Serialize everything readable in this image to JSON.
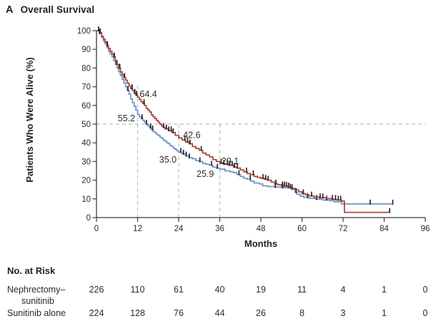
{
  "title": {
    "panel": "A",
    "text": "Overall Survival"
  },
  "colors": {
    "nephrectomy_sunitinib": "#a8423a",
    "sunitinib_alone": "#7093c5",
    "censor": "#1f1f1f",
    "dashed": "#bdbdbd",
    "axis": "#3b3b3b",
    "text": "#231f20"
  },
  "chart_data": {
    "type": "line",
    "subtype": "kaplan_meier_step",
    "title": "Overall Survival",
    "xlabel": "Months",
    "ylabel": "Patients Who Were Alive (%)",
    "xlim": [
      0,
      96
    ],
    "ylim": [
      0,
      100
    ],
    "x_ticks": [
      0,
      12,
      24,
      36,
      48,
      60,
      72,
      84,
      96
    ],
    "y_ticks": [
      0,
      10,
      20,
      30,
      40,
      50,
      60,
      70,
      80,
      90,
      100
    ],
    "grid": false,
    "reference_lines": {
      "horizontal_pct": 50,
      "vertical": [
        {
          "month": 12,
          "to_pct": 71
        },
        {
          "month": 24,
          "to_pct": 50
        },
        {
          "month": 36,
          "to_pct": 50
        }
      ]
    },
    "series": [
      {
        "name": "Sunitinib alone",
        "color_key": "sunitinib_alone",
        "steps": [
          [
            0,
            100
          ],
          [
            0.8,
            98.5
          ],
          [
            1.5,
            96.5
          ],
          [
            2,
            94.5
          ],
          [
            2.5,
            93
          ],
          [
            3,
            91
          ],
          [
            3.5,
            89
          ],
          [
            4,
            87.5
          ],
          [
            4.5,
            86
          ],
          [
            5,
            84
          ],
          [
            5.5,
            82
          ],
          [
            6,
            80
          ],
          [
            6.5,
            78
          ],
          [
            7,
            76
          ],
          [
            7.5,
            74
          ],
          [
            8,
            72
          ],
          [
            8.5,
            70
          ],
          [
            9,
            68
          ],
          [
            9.5,
            66
          ],
          [
            10,
            63.5
          ],
          [
            10.5,
            61.5
          ],
          [
            11,
            59.5
          ],
          [
            11.5,
            57.5
          ],
          [
            12,
            55.2
          ],
          [
            12.5,
            54
          ],
          [
            13,
            53
          ],
          [
            13.5,
            52
          ],
          [
            14,
            51
          ],
          [
            14.5,
            50
          ],
          [
            15,
            49
          ],
          [
            15.5,
            48
          ],
          [
            16,
            47
          ],
          [
            16.5,
            46
          ],
          [
            17,
            45.5
          ],
          [
            17.5,
            44.5
          ],
          [
            18,
            44
          ],
          [
            18.5,
            43
          ],
          [
            19,
            42.5
          ],
          [
            19.5,
            41.5
          ],
          [
            20,
            41
          ],
          [
            20.5,
            40
          ],
          [
            21,
            39.5
          ],
          [
            21.5,
            38.5
          ],
          [
            22,
            38
          ],
          [
            22.5,
            37
          ],
          [
            23,
            36.5
          ],
          [
            23.5,
            35.7
          ],
          [
            24,
            35
          ],
          [
            25,
            34
          ],
          [
            26,
            33
          ],
          [
            27,
            32
          ],
          [
            28,
            31.5
          ],
          [
            29,
            30.5
          ],
          [
            30,
            30
          ],
          [
            31,
            29
          ],
          [
            32,
            28.5
          ],
          [
            33,
            28
          ],
          [
            34,
            27
          ],
          [
            35,
            26.5
          ],
          [
            36,
            25.9
          ],
          [
            37.5,
            25
          ],
          [
            39,
            24.5
          ],
          [
            40,
            24
          ],
          [
            41,
            23
          ],
          [
            42,
            22
          ],
          [
            43,
            21
          ],
          [
            44,
            20.5
          ],
          [
            45,
            19.5
          ],
          [
            46,
            18.5
          ],
          [
            47.5,
            18
          ],
          [
            48.5,
            17
          ],
          [
            50,
            16.6
          ],
          [
            52,
            16.3
          ],
          [
            54,
            16
          ],
          [
            56,
            15.8
          ],
          [
            57,
            15
          ],
          [
            58,
            13.5
          ],
          [
            58.5,
            12.5
          ],
          [
            59.5,
            11.5
          ],
          [
            60.5,
            10.8
          ],
          [
            62,
            10.3
          ],
          [
            64,
            9.8
          ],
          [
            66,
            9.4
          ],
          [
            68,
            9
          ],
          [
            69.5,
            8.4
          ],
          [
            71.5,
            7.3
          ],
          [
            86.5,
            7.3
          ]
        ],
        "censor_months": [
          0.9,
          5.8,
          9.2,
          13.3,
          14.6,
          15.8,
          16.4,
          24.6,
          25.4,
          26.2,
          27.1,
          30.2,
          33.6,
          35.3,
          41.6,
          44.9,
          52.2,
          54.4,
          56.6,
          58.3,
          61.6,
          64.3,
          67.2,
          79.9,
          86.5
        ],
        "value_labels": [
          {
            "text": "55.2",
            "x": 11.3,
            "y": 53,
            "anchor": "end"
          },
          {
            "text": "35.0",
            "x": 23.4,
            "y": 31,
            "anchor": "end"
          },
          {
            "text": "25.9",
            "x": 34.3,
            "y": 23.3,
            "anchor": "end"
          }
        ]
      },
      {
        "name": "Nephrectomy–sunitinib",
        "color_key": "nephrectomy_sunitinib",
        "steps": [
          [
            0,
            100
          ],
          [
            0.8,
            99
          ],
          [
            1.5,
            97
          ],
          [
            2,
            95.5
          ],
          [
            2.5,
            94
          ],
          [
            3,
            92
          ],
          [
            3.5,
            90.5
          ],
          [
            4,
            89
          ],
          [
            4.5,
            87.5
          ],
          [
            5,
            86
          ],
          [
            5.5,
            84
          ],
          [
            6,
            82
          ],
          [
            6.5,
            80
          ],
          [
            7,
            78
          ],
          [
            7.5,
            76.5
          ],
          [
            8,
            75
          ],
          [
            8.5,
            73.5
          ],
          [
            9,
            72
          ],
          [
            9.5,
            70.5
          ],
          [
            10,
            69
          ],
          [
            10.5,
            68
          ],
          [
            11,
            66.5
          ],
          [
            11.5,
            65.5
          ],
          [
            12,
            64.4
          ],
          [
            12.5,
            63.2
          ],
          [
            13,
            62
          ],
          [
            13.5,
            61
          ],
          [
            14,
            60
          ],
          [
            14.5,
            58.5
          ],
          [
            15,
            57.5
          ],
          [
            15.5,
            56.5
          ],
          [
            16,
            55
          ],
          [
            16.5,
            54
          ],
          [
            17,
            53
          ],
          [
            17.5,
            52
          ],
          [
            18,
            51
          ],
          [
            18.5,
            50
          ],
          [
            19,
            49
          ],
          [
            19.5,
            48.3
          ],
          [
            20,
            47.5
          ],
          [
            21,
            46.5
          ],
          [
            22,
            45.5
          ],
          [
            23,
            44
          ],
          [
            24,
            42.6
          ],
          [
            25,
            41.5
          ],
          [
            26,
            40.5
          ],
          [
            27,
            39.5
          ],
          [
            28,
            38
          ],
          [
            29,
            37
          ],
          [
            30,
            36
          ],
          [
            31,
            34.5
          ],
          [
            32,
            33.5
          ],
          [
            33,
            32.5
          ],
          [
            34,
            31
          ],
          [
            35,
            30
          ],
          [
            36,
            29.1
          ],
          [
            37.2,
            28.5
          ],
          [
            38.5,
            28
          ],
          [
            40,
            27
          ],
          [
            41,
            26.5
          ],
          [
            42,
            25.5
          ],
          [
            43,
            24.5
          ],
          [
            44,
            23.5
          ],
          [
            45,
            23
          ],
          [
            46,
            22
          ],
          [
            47,
            21.5
          ],
          [
            48,
            21
          ],
          [
            49,
            20.5
          ],
          [
            50,
            20
          ],
          [
            51,
            19
          ],
          [
            52,
            18
          ],
          [
            53,
            17.5
          ],
          [
            54,
            17
          ],
          [
            55,
            16.8
          ],
          [
            56,
            16.4
          ],
          [
            57,
            15.6
          ],
          [
            58,
            14.8
          ],
          [
            59,
            13.8
          ],
          [
            60,
            12.8
          ],
          [
            61,
            12.2
          ],
          [
            62,
            11.6
          ],
          [
            63.5,
            11
          ],
          [
            65,
            10.6
          ],
          [
            67,
            10.2
          ],
          [
            68.5,
            9.8
          ],
          [
            70,
            9.4
          ],
          [
            71.5,
            8.8
          ],
          [
            72.4,
            2.8
          ],
          [
            85.6,
            2.8
          ]
        ],
        "censor_months": [
          0.6,
          1.1,
          3.2,
          5.2,
          6.8,
          8.2,
          10.4,
          11.2,
          11.7,
          13.9,
          19.6,
          20.4,
          21.1,
          21.8,
          22.4,
          25.8,
          26.6,
          27.3,
          30.6,
          36.4,
          37.2,
          38.2,
          38.9,
          39.6,
          40.3,
          41.1,
          43.8,
          45.8,
          48.6,
          49.4,
          50.1,
          52.4,
          54.3,
          54.9,
          55.5,
          56.1,
          57.1,
          60.4,
          62.8,
          65.3,
          66.1,
          68.9,
          69.8,
          70.6,
          71.3,
          85.6
        ],
        "value_labels": [
          {
            "text": "64.4",
            "x": 12.6,
            "y": 66,
            "anchor": "start"
          },
          {
            "text": "42.6",
            "x": 25.3,
            "y": 44,
            "anchor": "start"
          },
          {
            "text": "29.1",
            "x": 36.5,
            "y": 30.2,
            "anchor": "start"
          }
        ]
      }
    ]
  },
  "risk_table": {
    "heading": "No. at Risk",
    "time_points": [
      0,
      12,
      24,
      36,
      48,
      60,
      72,
      84,
      96
    ],
    "rows": [
      {
        "label_lines": [
          "Nephrectomy–",
          "sunitinib"
        ],
        "counts": [
          226,
          110,
          61,
          40,
          19,
          11,
          4,
          1,
          0
        ]
      },
      {
        "label_lines": [
          "Sunitinib alone"
        ],
        "counts": [
          224,
          128,
          76,
          44,
          26,
          8,
          3,
          1,
          0
        ]
      }
    ]
  }
}
